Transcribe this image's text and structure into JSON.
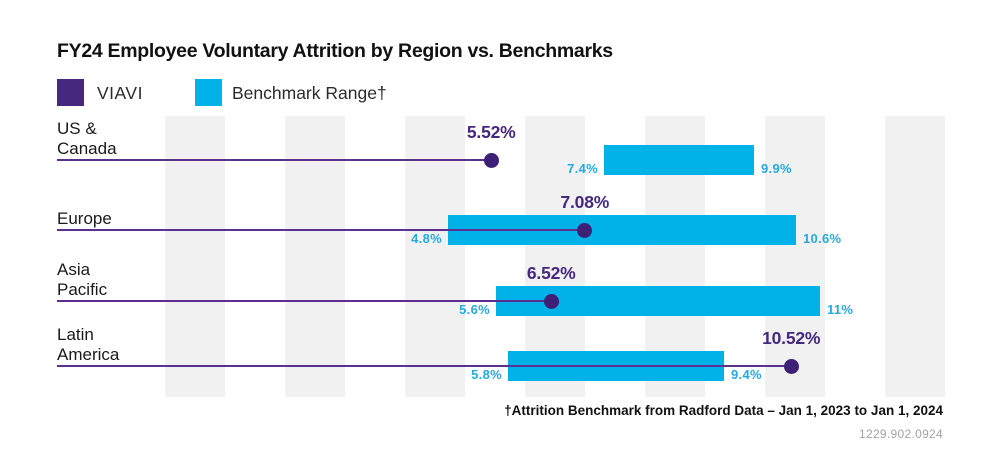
{
  "title": "FY24 Employee Voluntary Attrition by Region vs. Benchmarks",
  "legend": {
    "viavi": "VIAVI",
    "benchmark": "Benchmark Range†"
  },
  "footnote": "†Attrition Benchmark from Radford Data – Jan 1, 2023 to Jan 1, 2024",
  "doc_code": "1229.902.0924",
  "colors": {
    "viavi_purple": "#46287e",
    "dot_purple": "#3e2176",
    "line_purple": "#5c2f91",
    "benchmark_cyan": "#00b2e8",
    "cyan_label": "#25a9e0",
    "stripe_gray": "#f1f1f1"
  },
  "chart_data": {
    "type": "bar",
    "subtype": "lollipop-dots-with-range-bars",
    "title": "FY24 Employee Voluntary Attrition by Region vs. Benchmarks",
    "unit": "%",
    "xlim": [
      0,
      13
    ],
    "grid": "vertical-stripes",
    "legend_position": "top-left",
    "categories": [
      "US & Canada",
      "Europe",
      "Asia Pacific",
      "Latin America"
    ],
    "category_lines": [
      [
        "US &",
        "Canada"
      ],
      [
        "Europe"
      ],
      [
        "Asia",
        "Pacific"
      ],
      [
        "Latin",
        "America"
      ]
    ],
    "series": [
      {
        "name": "VIAVI",
        "values": [
          5.52,
          7.08,
          6.52,
          10.52
        ],
        "value_labels": [
          "5.52%",
          "7.08%",
          "6.52%",
          "10.52%"
        ]
      },
      {
        "name": "Benchmark Range",
        "ranges": [
          [
            7.4,
            9.9
          ],
          [
            4.8,
            10.6
          ],
          [
            5.6,
            11.0
          ],
          [
            5.8,
            9.4
          ]
        ],
        "range_labels": [
          [
            "7.4%",
            "9.9%"
          ],
          [
            "4.8%",
            "10.6%"
          ],
          [
            "5.6%",
            "11%"
          ],
          [
            "5.8%",
            "9.4%"
          ]
        ]
      }
    ]
  }
}
